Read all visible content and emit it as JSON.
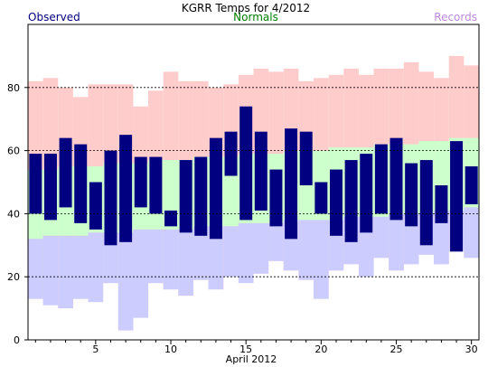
{
  "chart_data": {
    "type": "bar",
    "title": "KGRR Temps for 4/2012",
    "xlabel": "April 2012",
    "ylabel": "",
    "legend": [
      {
        "name": "Observed",
        "color": "#000080",
        "placement": "top-left"
      },
      {
        "name": "Normals",
        "color": "#007f00",
        "placement": "top-center"
      },
      {
        "name": "Records",
        "color": "#bb88dd",
        "placement": "top-right"
      }
    ],
    "xlim": [
      0.5,
      30.5
    ],
    "ylim": [
      0,
      100
    ],
    "yticks": [
      0,
      20,
      40,
      60,
      80
    ],
    "xticks": [
      5,
      10,
      15,
      20,
      25,
      30
    ],
    "grid": "dashed at 20, 40, 60, 80",
    "days": [
      1,
      2,
      3,
      4,
      5,
      6,
      7,
      8,
      9,
      10,
      11,
      12,
      13,
      14,
      15,
      16,
      17,
      18,
      19,
      20,
      21,
      22,
      23,
      24,
      25,
      26,
      27,
      28,
      29,
      30
    ],
    "series": [
      {
        "name": "Observed",
        "color": "#000080",
        "high": [
          59,
          59,
          64,
          62,
          50,
          60,
          65,
          58,
          58,
          41,
          57,
          58,
          64,
          66,
          74,
          66,
          54,
          67,
          66,
          50,
          54,
          57,
          59,
          62,
          64,
          56,
          57,
          49,
          63,
          55
        ],
        "low": [
          40,
          38,
          42,
          37,
          35,
          30,
          31,
          42,
          40,
          36,
          34,
          33,
          32,
          52,
          38,
          41,
          36,
          32,
          49,
          40,
          33,
          31,
          34,
          40,
          38,
          36,
          30,
          37,
          28,
          43
        ]
      },
      {
        "name": "Normals",
        "color": "#ccffcc",
        "high": [
          54,
          54,
          55,
          55,
          55,
          56,
          56,
          56,
          57,
          57,
          57,
          58,
          58,
          58,
          59,
          59,
          59,
          60,
          60,
          60,
          61,
          61,
          61,
          62,
          62,
          62,
          63,
          63,
          64,
          64
        ],
        "low": [
          32,
          33,
          33,
          33,
          34,
          34,
          34,
          35,
          35,
          35,
          35,
          36,
          36,
          36,
          37,
          37,
          37,
          38,
          38,
          38,
          38,
          39,
          39,
          39,
          40,
          40,
          40,
          41,
          41,
          42
        ]
      },
      {
        "name": "Records",
        "color": "#ffcccc",
        "high": [
          82,
          83,
          80,
          77,
          81,
          81,
          81,
          74,
          79,
          85,
          82,
          82,
          80,
          81,
          84,
          86,
          85,
          86,
          82,
          83,
          84,
          86,
          84,
          86,
          86,
          88,
          85,
          83,
          90,
          87
        ],
        "low": [
          13,
          11,
          10,
          13,
          12,
          18,
          3,
          7,
          18,
          16,
          14,
          19,
          16,
          20,
          18,
          21,
          25,
          22,
          19,
          13,
          22,
          24,
          20,
          26,
          22,
          24,
          27,
          24,
          28,
          26
        ]
      }
    ]
  }
}
